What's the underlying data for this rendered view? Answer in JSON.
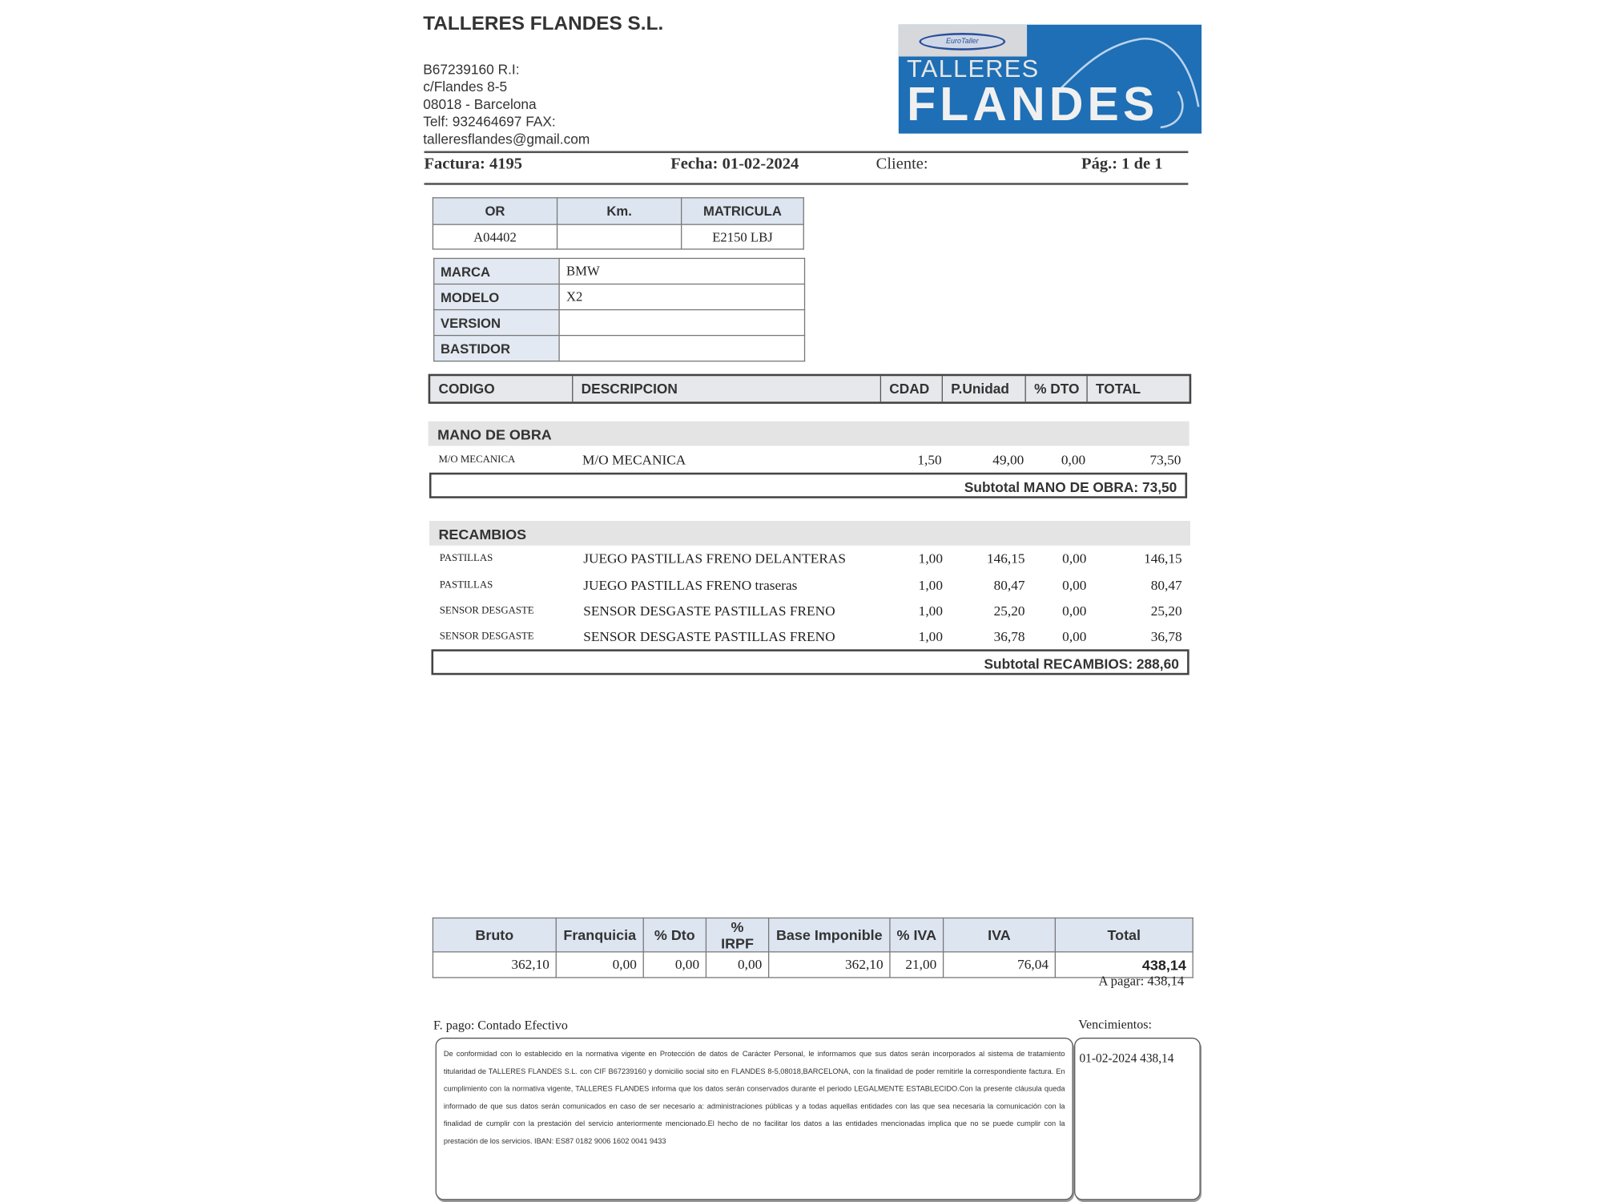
{
  "company": {
    "name": "TALLERES FLANDES S.L.",
    "lines": [
      "B67239160 R.I:",
      "c/Flandes 8-5",
      "08018 - Barcelona",
      "Telf: 932464697  FAX:",
      "talleresflandes@gmail.com"
    ]
  },
  "logo": {
    "top": "TALLERES",
    "main": "FLANDES",
    "badge": "EuroTaller",
    "color": "#1e6fb5"
  },
  "invoice": {
    "factura": "Factura: 4195",
    "fecha": "Fecha: 01-02-2024",
    "cliente": "Cliente:",
    "pagina": "Pág.: 1 de 1"
  },
  "order": {
    "headers": [
      "OR",
      "Km.",
      "MATRICULA"
    ],
    "values": [
      "A04402",
      "",
      "E2150 LBJ"
    ]
  },
  "vehicle": [
    {
      "label": "MARCA",
      "value": "BMW"
    },
    {
      "label": "MODELO",
      "value": "X2"
    },
    {
      "label": "VERSION",
      "value": ""
    },
    {
      "label": "BASTIDOR",
      "value": ""
    }
  ],
  "columns": [
    "CODIGO",
    "DESCRIPCION",
    "CDAD",
    "P.Unidad",
    "% DTO",
    "TOTAL"
  ],
  "labour": {
    "title": "MANO DE OBRA",
    "rows": [
      {
        "code": "M/O MECANICA",
        "desc": "M/O MECANICA",
        "qty": "1,50",
        "price": "49,00",
        "dto": "0,00",
        "total": "73,50"
      }
    ],
    "subtotal": "Subtotal MANO DE OBRA: 73,50"
  },
  "parts": {
    "title": "RECAMBIOS",
    "rows": [
      {
        "code": "PASTILLAS",
        "desc": "JUEGO PASTILLAS FRENO DELANTERAS",
        "qty": "1,00",
        "price": "146,15",
        "dto": "0,00",
        "total": "146,15"
      },
      {
        "code": "PASTILLAS",
        "desc": "JUEGO PASTILLAS FRENO traseras",
        "qty": "1,00",
        "price": "80,47",
        "dto": "0,00",
        "total": "80,47"
      },
      {
        "code": "SENSOR DESGASTE",
        "desc": "SENSOR DESGASTE PASTILLAS FRENO",
        "qty": "1,00",
        "price": "25,20",
        "dto": "0,00",
        "total": "25,20"
      },
      {
        "code": "SENSOR DESGASTE",
        "desc": "SENSOR DESGASTE PASTILLAS FRENO",
        "qty": "1,00",
        "price": "36,78",
        "dto": "0,00",
        "total": "36,78"
      }
    ],
    "subtotal": "Subtotal RECAMBIOS: 288,60"
  },
  "totals": {
    "headers": [
      "Bruto",
      "Franquicia",
      "% Dto",
      "% IRPF",
      "Base Imponible",
      "% IVA",
      "IVA",
      "Total"
    ],
    "values": [
      "362,10",
      "0,00",
      "0,00",
      "0,00",
      "362,10",
      "21,00",
      "76,04",
      "438,14"
    ],
    "a_pagar": "A pagar: 438,14"
  },
  "payment": {
    "label": "F. pago:  Contado Efectivo",
    "vencimientos_label": "Vencimientos:",
    "vencimiento": "01-02-2024   438,14"
  },
  "legal": "De conformidad con lo establecido en la normativa vigente en Protección de datos de Carácter Personal, le informamos que sus datos serán incorporados al sistema de tratamiento titularidad de TALLERES FLANDES S.L. con CIF B67239160 y domicilio social sito en FLANDES 8-5,08018,BARCELONA, con la finalidad de poder remitirle la correspondiente factura. En cumplimiento con la normativa vigente, TALLERES FLANDES informa que los datos serán conservados durante el periodo LEGALMENTE ESTABLECIDO.Con la presente cláusula queda informado de que sus datos serán comunicados en caso de ser necesario a: administraciones públicas y a todas aquellas entidades con las que sea necesaria la comunicación con la finalidad de cumplir con la prestación del servicio anteriormente mencionado.El hecho de no facilitar los datos a las entidades mencionadas implica que no se puede cumplir con la prestación de los servicios. IBAN: ES87 0182 9006 1602 0041 9433"
}
